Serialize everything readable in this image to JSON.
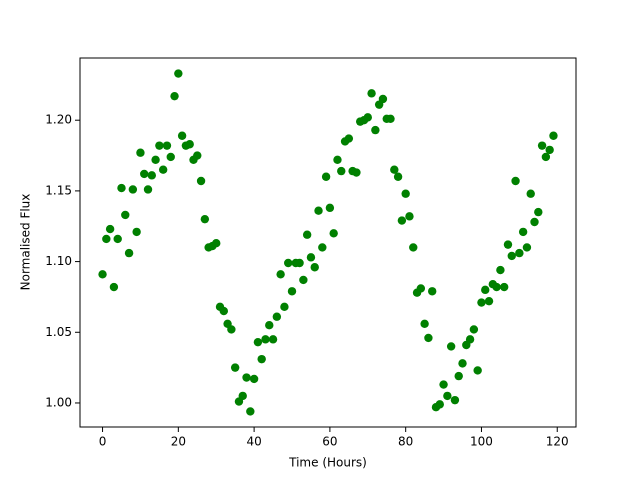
{
  "chart_data": {
    "type": "scatter",
    "xlabel": "Time (Hours)",
    "ylabel": "Normalised Flux",
    "color": "#008000",
    "x": [
      0,
      1,
      2,
      3,
      4,
      5,
      6,
      7,
      8,
      9,
      10,
      11,
      12,
      13,
      14,
      15,
      16,
      17,
      18,
      19,
      20,
      21,
      22,
      23,
      24,
      25,
      26,
      27,
      28,
      29,
      30,
      31,
      32,
      33,
      34,
      35,
      36,
      37,
      38,
      39,
      40,
      41,
      42,
      43,
      44,
      45,
      46,
      47,
      48,
      49,
      50,
      51,
      52,
      53,
      54,
      55,
      56,
      57,
      58,
      59,
      60,
      61,
      62,
      63,
      64,
      65,
      66,
      67,
      68,
      69,
      70,
      71,
      72,
      73,
      74,
      75,
      76,
      77,
      78,
      79,
      80,
      81,
      82,
      83,
      84,
      85,
      86,
      87,
      88,
      89,
      90,
      91,
      92,
      93,
      94,
      95,
      96,
      97,
      98,
      99,
      100,
      101,
      102,
      103,
      104,
      105,
      106,
      107,
      108,
      109,
      110,
      111,
      112,
      113,
      114,
      115,
      116,
      117,
      118,
      119
    ],
    "y": [
      1.091,
      1.116,
      1.123,
      1.082,
      1.116,
      1.152,
      1.133,
      1.106,
      1.151,
      1.121,
      1.177,
      1.162,
      1.151,
      1.161,
      1.172,
      1.182,
      1.165,
      1.182,
      1.174,
      1.217,
      1.233,
      1.189,
      1.182,
      1.183,
      1.172,
      1.175,
      1.157,
      1.13,
      1.11,
      1.111,
      1.113,
      1.068,
      1.065,
      1.056,
      1.052,
      1.025,
      1.001,
      1.005,
      1.018,
      0.994,
      1.017,
      1.043,
      1.031,
      1.045,
      1.055,
      1.045,
      1.061,
      1.091,
      1.068,
      1.099,
      1.079,
      1.099,
      1.099,
      1.087,
      1.119,
      1.103,
      1.096,
      1.136,
      1.11,
      1.16,
      1.138,
      1.12,
      1.172,
      1.164,
      1.185,
      1.187,
      1.164,
      1.163,
      1.199,
      1.2,
      1.202,
      1.219,
      1.193,
      1.211,
      1.215,
      1.201,
      1.201,
      1.165,
      1.16,
      1.129,
      1.148,
      1.132,
      1.11,
      1.078,
      1.081,
      1.056,
      1.046,
      1.079,
      0.997,
      0.999,
      1.013,
      1.005,
      1.04,
      1.002,
      1.019,
      1.028,
      1.041,
      1.045,
      1.052,
      1.023,
      1.071,
      1.08,
      1.072,
      1.084,
      1.082,
      1.094,
      1.082,
      1.112,
      1.104,
      1.157,
      1.106,
      1.121,
      1.11,
      1.148,
      1.128,
      1.135,
      1.182,
      1.174,
      1.179,
      1.189
    ],
    "xlim": [
      -5.95,
      124.95
    ],
    "ylim": [
      0.983,
      1.244
    ],
    "xticks": [
      0,
      20,
      40,
      60,
      80,
      100,
      120
    ],
    "yticks": [
      {
        "value": 1.0,
        "label": "1.00"
      },
      {
        "value": 1.05,
        "label": "1.05"
      },
      {
        "value": 1.1,
        "label": "1.10"
      },
      {
        "value": 1.15,
        "label": "1.15"
      },
      {
        "value": 1.2,
        "label": "1.20"
      }
    ]
  }
}
